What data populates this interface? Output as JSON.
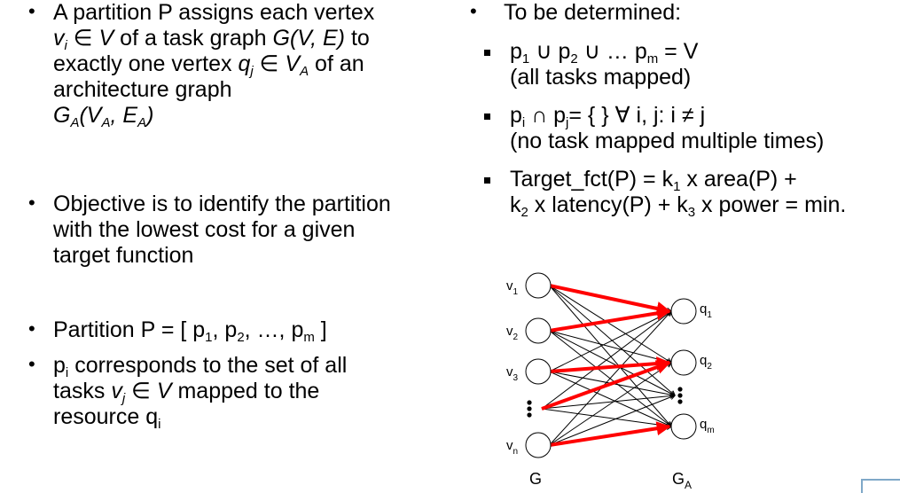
{
  "left": {
    "b1": {
      "t1": "A partition P assigns each vertex",
      "t2": "∈",
      "t3": "of a task graph",
      "t4": "to",
      "t5": "exactly one vertex",
      "t6": "∈",
      "t7": "of an",
      "t8": "architecture graph",
      "v": "v",
      "vi": "i",
      "V": "V",
      "G": "G(V, E)",
      "q": "q",
      "qj": "j",
      "VA": "V",
      "VA_sub": "A",
      "GA": "G",
      "GA_sub": "A",
      "GA_open": "(V",
      "GA_sub2": "A",
      "GA_mid": ", E",
      "GA_sub3": "A",
      "GA_close": ")"
    },
    "b2": {
      "l1": "Objective is to identify the partition",
      "l2": "with the lowest cost for a given",
      "l3": "target function"
    },
    "b3": {
      "a": "Partition P = [ p",
      "s1": "1",
      "b": ", p",
      "s2": "2",
      "c": ", …, p",
      "sm": "m",
      "d": " ]"
    },
    "b4": {
      "p": "p",
      "pi": "i",
      "t1": " corresponds to the set of all",
      "t2": "tasks",
      "v": "v",
      "vj": "j",
      "t3": "∈",
      "V": "V",
      "t4": "mapped to the",
      "t5": "resource q",
      "qi": "i"
    }
  },
  "right": {
    "heading": "To be determined:",
    "s1": {
      "a": "p",
      "s1": "1",
      "b": " ∪ p",
      "s2": "2",
      "c": " ∪ … p",
      "sm": "m",
      "d": " = V",
      "note": "(all tasks mapped)"
    },
    "s2": {
      "a": "p",
      "si": "i",
      "b": " ∩ p",
      "sj": "j",
      "c": "= { } ∀ i, j: i ≠ j",
      "note": "(no task mapped multiple times)"
    },
    "s3": {
      "a": "Target_fct(P) = k",
      "s1": "1",
      "b": " x area(P) +",
      "c": "k",
      "s2": "2",
      "d": " x latency(P) + k",
      "s3": "3",
      "e": " x power = min."
    }
  },
  "diagram": {
    "left_nodes": [
      {
        "name": "v",
        "sub": "1"
      },
      {
        "name": "v",
        "sub": "2"
      },
      {
        "name": "v",
        "sub": "3"
      },
      {
        "name": "v",
        "sub": "n"
      }
    ],
    "right_nodes": [
      {
        "name": "q",
        "sub": "1"
      },
      {
        "name": "q",
        "sub": "2"
      },
      {
        "name": "q",
        "sub": "m"
      }
    ],
    "label_left": "G",
    "label_right": "G",
    "label_right_sub": "A",
    "mapping_color": "#ff0000"
  }
}
